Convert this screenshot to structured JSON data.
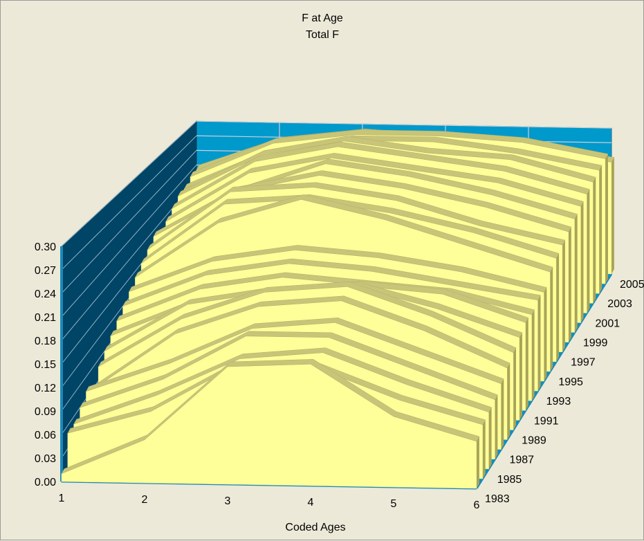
{
  "chart_data": {
    "type": "area",
    "title": "F at Age",
    "subtitle": "Total F",
    "xlabel": "Coded Ages",
    "ylabel": "",
    "x": [
      1,
      2,
      3,
      4,
      5,
      6
    ],
    "y_ticks": [
      "0.00",
      "0.03",
      "0.06",
      "0.09",
      "0.12",
      "0.15",
      "0.18",
      "0.21",
      "0.24",
      "0.27",
      "0.30"
    ],
    "ylim": [
      0,
      0.3
    ],
    "z_ticks": [
      "1983",
      "1985",
      "1987",
      "1989",
      "1991",
      "1993",
      "1995",
      "1997",
      "1999",
      "2001",
      "2003",
      "2005"
    ],
    "series": [
      {
        "name": "1983",
        "values": [
          0.01,
          0.055,
          0.15,
          0.155,
          0.09,
          0.06
        ]
      },
      {
        "name": "1984",
        "values": [
          0.05,
          0.08,
          0.14,
          0.14,
          0.1,
          0.07
        ]
      },
      {
        "name": "1985",
        "values": [
          0.05,
          0.09,
          0.14,
          0.15,
          0.11,
          0.075
        ]
      },
      {
        "name": "1986",
        "values": [
          0.06,
          0.1,
          0.16,
          0.16,
          0.12,
          0.08
        ]
      },
      {
        "name": "1987",
        "values": [
          0.07,
          0.11,
          0.16,
          0.17,
          0.13,
          0.09
        ]
      },
      {
        "name": "1988",
        "values": [
          0.06,
          0.14,
          0.18,
          0.19,
          0.15,
          0.1
        ]
      },
      {
        "name": "1989",
        "values": [
          0.08,
          0.15,
          0.19,
          0.2,
          0.16,
          0.11
        ]
      },
      {
        "name": "1990",
        "values": [
          0.09,
          0.16,
          0.18,
          0.19,
          0.16,
          0.12
        ]
      },
      {
        "name": "1991",
        "values": [
          0.1,
          0.15,
          0.17,
          0.18,
          0.17,
          0.13
        ]
      },
      {
        "name": "1992",
        "values": [
          0.11,
          0.16,
          0.18,
          0.17,
          0.16,
          0.13
        ]
      },
      {
        "name": "1993",
        "values": [
          0.12,
          0.17,
          0.19,
          0.18,
          0.16,
          0.14
        ]
      },
      {
        "name": "1994",
        "values": [
          0.13,
          0.18,
          0.2,
          0.19,
          0.17,
          0.14
        ]
      },
      {
        "name": "1995",
        "values": [
          0.14,
          0.23,
          0.27,
          0.24,
          0.2,
          0.16
        ]
      },
      {
        "name": "1996",
        "values": [
          0.15,
          0.25,
          0.26,
          0.24,
          0.21,
          0.17
        ]
      },
      {
        "name": "1997",
        "values": [
          0.16,
          0.26,
          0.27,
          0.25,
          0.21,
          0.18
        ]
      },
      {
        "name": "1998",
        "values": [
          0.17,
          0.25,
          0.28,
          0.26,
          0.23,
          0.19
        ]
      },
      {
        "name": "1999",
        "values": [
          0.16,
          0.24,
          0.29,
          0.27,
          0.24,
          0.2
        ]
      },
      {
        "name": "2000",
        "values": [
          0.17,
          0.26,
          0.29,
          0.27,
          0.25,
          0.21
        ]
      },
      {
        "name": "2001",
        "values": [
          0.18,
          0.27,
          0.3,
          0.28,
          0.26,
          0.22
        ]
      },
      {
        "name": "2002",
        "values": [
          0.19,
          0.27,
          0.3,
          0.28,
          0.27,
          0.23
        ]
      },
      {
        "name": "2003",
        "values": [
          0.19,
          0.26,
          0.29,
          0.29,
          0.27,
          0.24
        ]
      },
      {
        "name": "2004",
        "values": [
          0.2,
          0.27,
          0.29,
          0.29,
          0.28,
          0.25
        ]
      },
      {
        "name": "2005",
        "values": [
          0.2,
          0.26,
          0.28,
          0.27,
          0.25,
          0.23
        ]
      }
    ],
    "colors": {
      "surface": "#ffff99",
      "ridge": "#c8c478",
      "wall": "#0099cc",
      "side_wall": "#004466",
      "grid": "#c8d0d8",
      "background": "#ece9d8"
    },
    "grid": true,
    "legend": "none"
  }
}
